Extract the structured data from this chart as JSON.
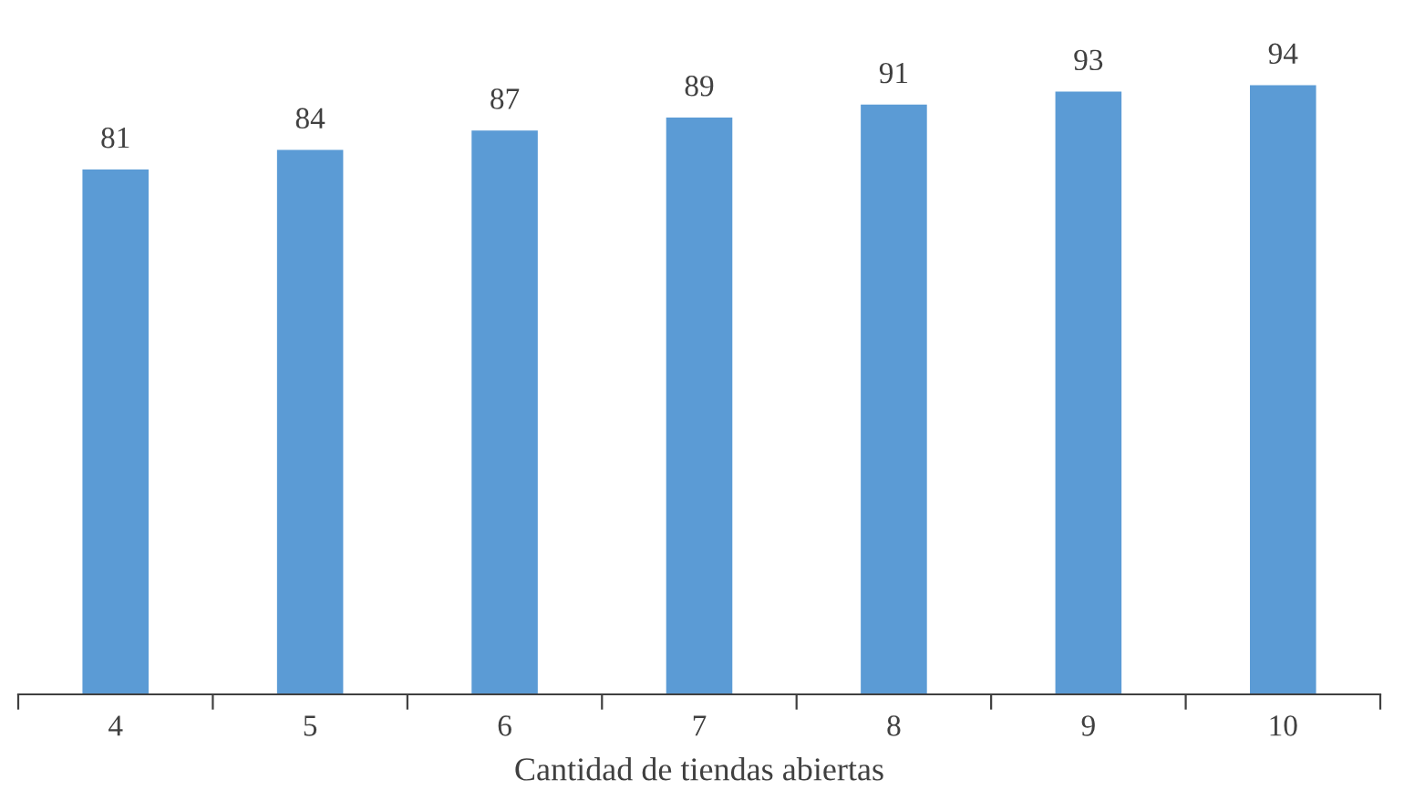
{
  "chart_data": {
    "type": "bar",
    "xlabel": "Cantidad de tiendas abiertas",
    "categories": [
      "4",
      "5",
      "6",
      "7",
      "8",
      "9",
      "10"
    ],
    "values": [
      81,
      84,
      87,
      89,
      91,
      93,
      94
    ],
    "color": "#5b9bd5",
    "tick_labels": "x",
    "data_labels": true,
    "grid": false,
    "legend": false
  }
}
